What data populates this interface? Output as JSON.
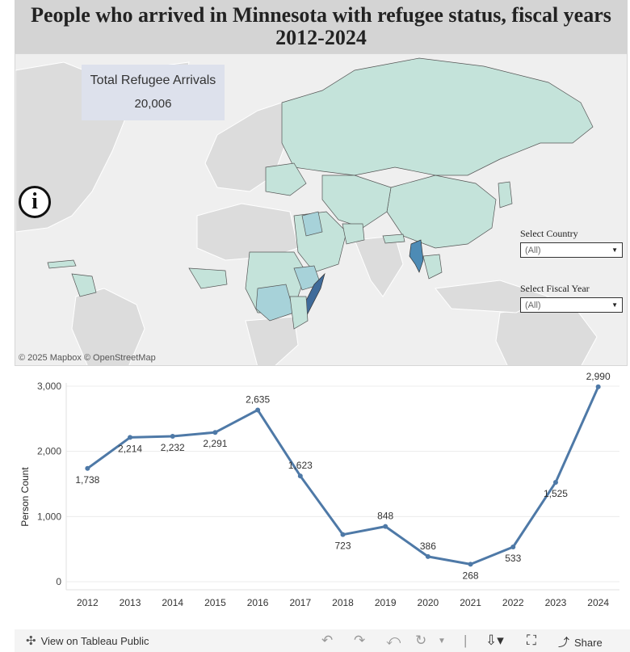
{
  "title": "People who arrived in Minnesota with refugee status, fiscal years 2012-2024",
  "summary": {
    "label": "Total Refugee Arrivals",
    "value": "20,006"
  },
  "map": {
    "attribution": "© 2025 Mapbox  © OpenStreetMap",
    "info_icon": "info-icon",
    "colors": {
      "land": "#dcdcdc",
      "low": "#c4e3da",
      "mid": "#a7d2d9",
      "high": "#4d8bb5",
      "highest": "#3f6b9a"
    }
  },
  "filters": {
    "country": {
      "label": "Select Country",
      "value": "(All)"
    },
    "year": {
      "label": "Select Fiscal Year",
      "value": "(All)"
    }
  },
  "chart_data": {
    "type": "line",
    "x": [
      "2012",
      "2013",
      "2014",
      "2015",
      "2016",
      "2017",
      "2018",
      "2019",
      "2020",
      "2021",
      "2022",
      "2023",
      "2024"
    ],
    "series": [
      {
        "values": [
          1738,
          2214,
          2232,
          2291,
          2635,
          1623,
          723,
          848,
          386,
          268,
          533,
          1525,
          2990
        ]
      }
    ],
    "data_labels": [
      "1,738",
      "2,214",
      "2,232",
      "2,291",
      "2,635",
      "1,623",
      "723",
      "848",
      "386",
      "268",
      "533",
      "1,525",
      "2,990"
    ],
    "yticks": [
      "0",
      "1,000",
      "2,000",
      "3,000"
    ],
    "ytick_values": [
      0,
      1000,
      2000,
      3000
    ],
    "ylabel": "Person Count",
    "xlabel": "",
    "ylim": [
      0,
      3000
    ],
    "color": "#4e79a7",
    "grid": true
  },
  "footer": {
    "view_label": "View on Tableau Public",
    "share_label": "Share"
  }
}
